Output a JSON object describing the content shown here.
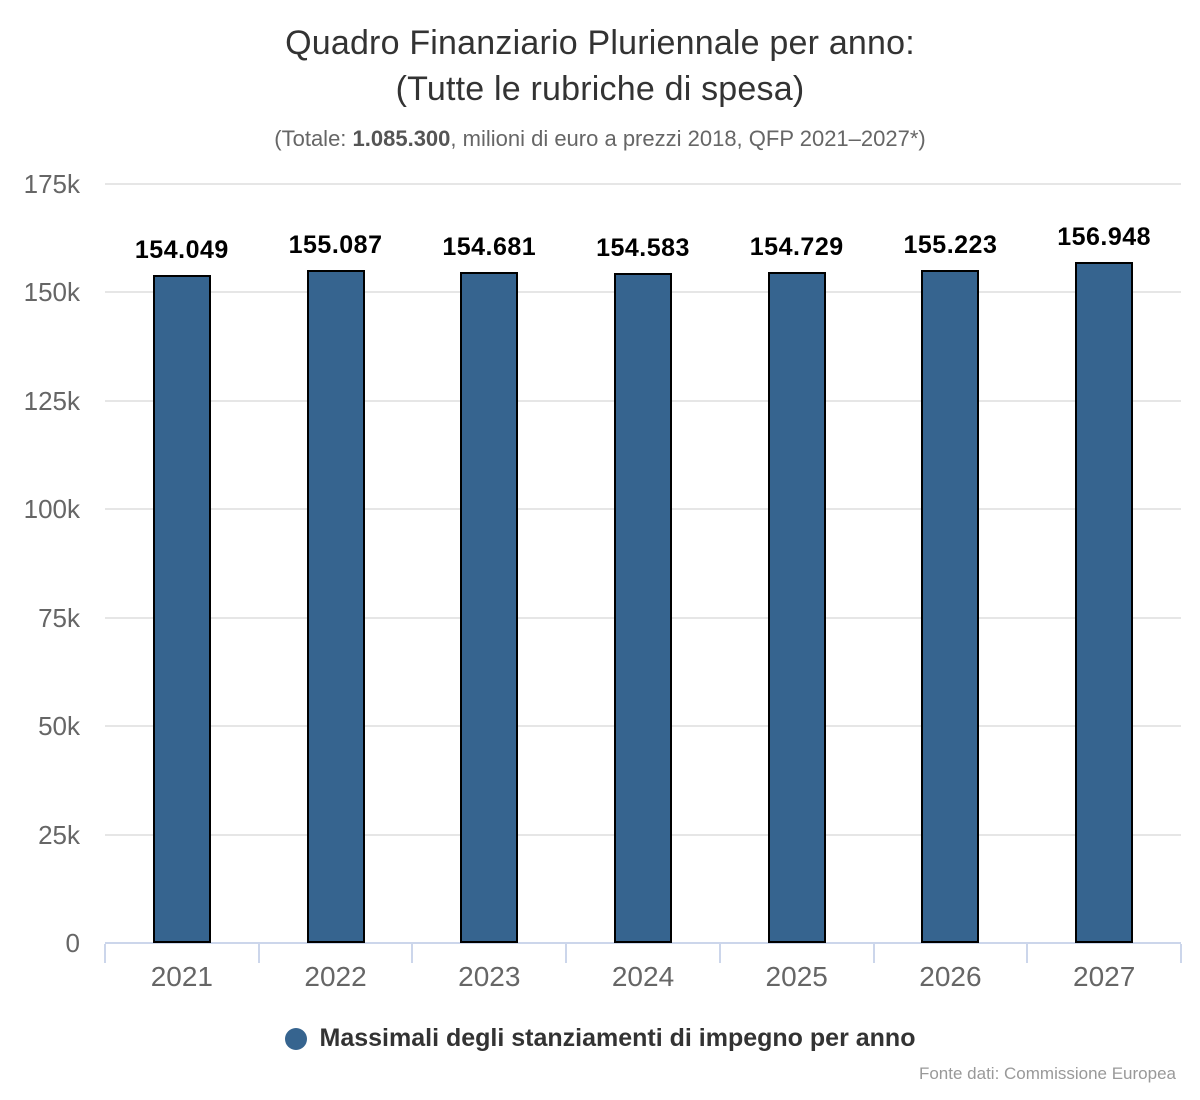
{
  "title": {
    "line1": "Quadro Finanziario Pluriennale per anno:",
    "line2": "(Tutte le rubriche di spesa)"
  },
  "subtitle": {
    "prefix": "(Totale: ",
    "total": "1.085.300",
    "suffix": ", milioni di euro a prezzi 2018, QFP 2021–2027*)"
  },
  "chart_data": {
    "type": "bar",
    "title": "Quadro Finanziario Pluriennale per anno: (Tutte le rubriche di spesa)",
    "subtitle": "(Totale: 1.085.300, milioni di euro a prezzi 2018, QFP 2021–2027*)",
    "categories": [
      "2021",
      "2022",
      "2023",
      "2024",
      "2025",
      "2026",
      "2027"
    ],
    "series": [
      {
        "name": "Massimali degli stanziamenti di impegno per anno",
        "values": [
          154049,
          155087,
          154681,
          154583,
          154729,
          155223,
          156948
        ],
        "value_labels": [
          "154.049",
          "155.087",
          "154.681",
          "154.583",
          "154.729",
          "155.223",
          "156.948"
        ]
      }
    ],
    "xlabel": "",
    "ylabel": "",
    "ylim": [
      0,
      175000
    ],
    "ytick_values": [
      0,
      25000,
      50000,
      75000,
      100000,
      125000,
      150000,
      175000
    ],
    "ytick_labels": [
      "0",
      "25k",
      "50k",
      "75k",
      "100k",
      "125k",
      "150k",
      "175k"
    ],
    "grid": true,
    "legend_position": "bottom"
  },
  "legend": {
    "label": "Massimali degli stanziamenti di impegno per anno"
  },
  "credits": {
    "text": "Fonte dati: Commissione Europea"
  },
  "colors": {
    "bar_fill": "#36648f",
    "bar_border": "#000000",
    "axis_line": "#ccd6eb",
    "gridline": "#e6e6e6",
    "axis_label": "#666666",
    "data_label": "#000000",
    "title": "#333333",
    "subtitle": "#666666",
    "credits": "#999999",
    "background": "#ffffff"
  }
}
